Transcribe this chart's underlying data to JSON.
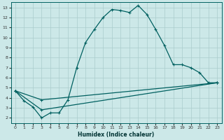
{
  "xlabel": "Humidex (Indice chaleur)",
  "bg_color": "#cce8e8",
  "grid_color": "#aacccc",
  "line_color": "#006060",
  "xlim": [
    -0.5,
    23.5
  ],
  "ylim": [
    1.5,
    13.5
  ],
  "yticks": [
    2,
    3,
    4,
    5,
    6,
    7,
    8,
    9,
    10,
    11,
    12,
    13
  ],
  "xticks": [
    0,
    1,
    2,
    3,
    4,
    5,
    6,
    7,
    8,
    9,
    10,
    11,
    12,
    13,
    14,
    15,
    16,
    17,
    18,
    19,
    20,
    21,
    22,
    23
  ],
  "line1_x": [
    0,
    1,
    2,
    3,
    4,
    5,
    6,
    7,
    8,
    9,
    10,
    11,
    12,
    13,
    14,
    15,
    16,
    17,
    18,
    19,
    20,
    21,
    22,
    23
  ],
  "line1_y": [
    4.7,
    3.7,
    3.1,
    2.0,
    2.5,
    2.5,
    3.8,
    7.0,
    9.5,
    10.8,
    12.0,
    12.8,
    12.7,
    12.5,
    13.2,
    12.3,
    10.8,
    9.2,
    7.3,
    7.3,
    7.0,
    6.5,
    5.5,
    5.5
  ],
  "line2_x": [
    0,
    3,
    23
  ],
  "line2_y": [
    4.7,
    3.8,
    5.5
  ],
  "line3_x": [
    0,
    3,
    23
  ],
  "line3_y": [
    4.7,
    2.8,
    5.5
  ]
}
